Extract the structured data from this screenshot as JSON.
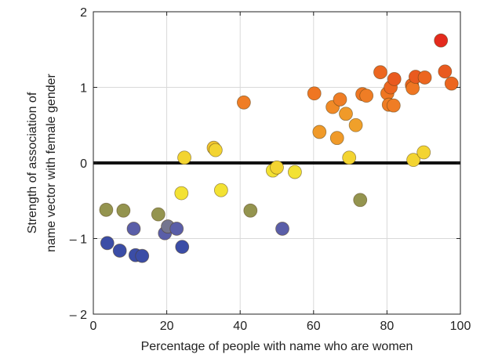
{
  "chart_data": {
    "type": "scatter",
    "title": "",
    "xlabel": "Percentage of people with name who are women",
    "ylabel_lines": [
      "Strength of association of",
      "name vector with female gender"
    ],
    "xlim": [
      0,
      100
    ],
    "ylim": [
      -2,
      2
    ],
    "xticks": [
      0,
      20,
      40,
      60,
      80,
      100
    ],
    "yticks": [
      -2,
      -1,
      0,
      1,
      2
    ],
    "ytick_labels": [
      "– 2",
      "– 1",
      "0",
      "1",
      "2"
    ],
    "grid": true,
    "reference_line": {
      "y": 0,
      "color": "#111111"
    },
    "points": [
      {
        "x": 3.5,
        "y": -0.62,
        "color": "#94944f"
      },
      {
        "x": 3.8,
        "y": -1.06,
        "color": "#3b4da6"
      },
      {
        "x": 7.2,
        "y": -1.16,
        "color": "#3b4da6"
      },
      {
        "x": 8.2,
        "y": -0.63,
        "color": "#94944f"
      },
      {
        "x": 11.0,
        "y": -0.87,
        "color": "#5a5ea8"
      },
      {
        "x": 11.5,
        "y": -1.22,
        "color": "#3b4da6"
      },
      {
        "x": 13.3,
        "y": -1.23,
        "color": "#3b4da6"
      },
      {
        "x": 17.7,
        "y": -0.68,
        "color": "#94944f"
      },
      {
        "x": 19.5,
        "y": -0.93,
        "color": "#5a5ea8"
      },
      {
        "x": 20.3,
        "y": -0.84,
        "color": "#74758f"
      },
      {
        "x": 22.7,
        "y": -0.87,
        "color": "#5a5ea8"
      },
      {
        "x": 24.0,
        "y": -0.4,
        "color": "#f3e233"
      },
      {
        "x": 24.2,
        "y": -1.11,
        "color": "#3b4da6"
      },
      {
        "x": 24.8,
        "y": 0.07,
        "color": "#f3d431"
      },
      {
        "x": 32.8,
        "y": 0.2,
        "color": "#f2c52e"
      },
      {
        "x": 33.3,
        "y": 0.17,
        "color": "#f3d431"
      },
      {
        "x": 34.8,
        "y": -0.36,
        "color": "#f3e233"
      },
      {
        "x": 41.0,
        "y": 0.8,
        "color": "#ef7d25"
      },
      {
        "x": 42.8,
        "y": -0.63,
        "color": "#94944f"
      },
      {
        "x": 48.9,
        "y": -0.1,
        "color": "#f3e233"
      },
      {
        "x": 50.0,
        "y": -0.06,
        "color": "#f3d431"
      },
      {
        "x": 51.5,
        "y": -0.87,
        "color": "#5a5ea8"
      },
      {
        "x": 54.9,
        "y": -0.12,
        "color": "#f3e233"
      },
      {
        "x": 60.2,
        "y": 0.92,
        "color": "#ef7622"
      },
      {
        "x": 61.6,
        "y": 0.41,
        "color": "#f09a29"
      },
      {
        "x": 65.2,
        "y": 0.74,
        "color": "#f08a27"
      },
      {
        "x": 66.4,
        "y": 0.33,
        "color": "#f09a29"
      },
      {
        "x": 67.2,
        "y": 0.84,
        "color": "#ef7d25"
      },
      {
        "x": 68.8,
        "y": 0.65,
        "color": "#f09a29"
      },
      {
        "x": 69.7,
        "y": 0.07,
        "color": "#f3d431"
      },
      {
        "x": 71.5,
        "y": 0.5,
        "color": "#f0a02a"
      },
      {
        "x": 72.7,
        "y": -0.49,
        "color": "#94944f"
      },
      {
        "x": 73.3,
        "y": 0.91,
        "color": "#ef7622"
      },
      {
        "x": 74.4,
        "y": 0.89,
        "color": "#ef7d25"
      },
      {
        "x": 78.2,
        "y": 1.2,
        "color": "#ec6620"
      },
      {
        "x": 80.1,
        "y": 0.92,
        "color": "#ef7622"
      },
      {
        "x": 80.5,
        "y": 0.77,
        "color": "#ef7d25"
      },
      {
        "x": 81.0,
        "y": 1.0,
        "color": "#ec6620"
      },
      {
        "x": 81.8,
        "y": 0.76,
        "color": "#ef7d25"
      },
      {
        "x": 82.0,
        "y": 1.11,
        "color": "#e95a1f"
      },
      {
        "x": 86.8,
        "y": 1.03,
        "color": "#ec6620"
      },
      {
        "x": 87.0,
        "y": 0.99,
        "color": "#ef7622"
      },
      {
        "x": 87.2,
        "y": 0.04,
        "color": "#f3d431"
      },
      {
        "x": 87.8,
        "y": 1.14,
        "color": "#e95a1f"
      },
      {
        "x": 90.3,
        "y": 1.13,
        "color": "#ec6620"
      },
      {
        "x": 90.0,
        "y": 0.14,
        "color": "#f3d431"
      },
      {
        "x": 94.7,
        "y": 1.62,
        "color": "#e42a1d"
      },
      {
        "x": 95.8,
        "y": 1.21,
        "color": "#e95a1f"
      },
      {
        "x": 97.6,
        "y": 1.05,
        "color": "#ec6620"
      }
    ]
  }
}
